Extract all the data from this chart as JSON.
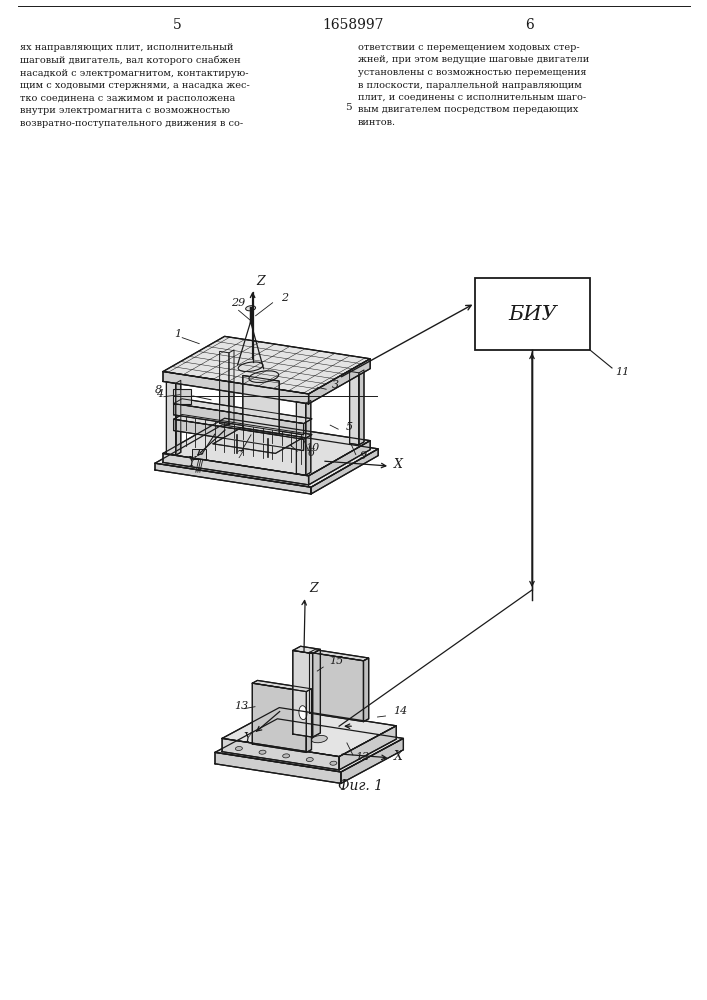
{
  "page_number_left": "5",
  "page_number_center": "1658997",
  "page_number_right": "6",
  "text_left": "ях направляющих плит, исполнительный\nшаговый двигатель, вал которого снабжен\nнасадкой с электромагнитом, контактирую-\nщим с ходовыми стержнями, а насадка жес-\nтко соединена с зажимом и расположена\nвнутри электромагнита с возможностью\nвозвратно-поступательного движения в со-",
  "text_right": "ответствии с перемещением ходовых стер-\nжней, при этом ведущие шаговые двигатели\nустановлены с возможностью перемещения\nв плоскости, параллельной направляющим\nплит, и соединены с исполнительным шаго-\nвым двигателем посредством передающих\nвинтов.",
  "fig_caption": "Фиг. 1",
  "biu_label": "БИУ",
  "bg_color": "#ffffff",
  "text_color": "#1a1a1a",
  "line_color": "#1a1a1a"
}
